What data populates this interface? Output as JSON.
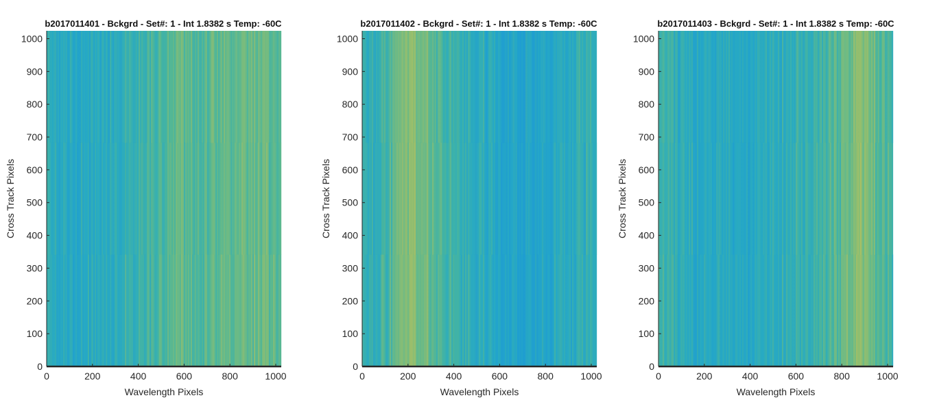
{
  "chart_data": [
    {
      "type": "heatmap",
      "title": "b2017011401 - Bckgrd - Set#: 1 - Int 1.8382 s Temp: -60C",
      "xlabel": "Wavelength Pixels",
      "ylabel": "Cross Track Pixels",
      "xlim": [
        0,
        1024
      ],
      "ylim": [
        0,
        1024
      ],
      "xticks": [
        0,
        200,
        400,
        600,
        800,
        1000
      ],
      "yticks": [
        0,
        100,
        200,
        300,
        400,
        500,
        600,
        700,
        800,
        900,
        1000
      ],
      "colormap": [
        "#1e9bd4",
        "#27aac4",
        "#4cb69a",
        "#8fbe70",
        "#c2c05a"
      ],
      "column_profile": [
        {
          "x": 0,
          "level": 0.3
        },
        {
          "x": 100,
          "level": 0.22
        },
        {
          "x": 200,
          "level": 0.25
        },
        {
          "x": 300,
          "level": 0.32
        },
        {
          "x": 400,
          "level": 0.4
        },
        {
          "x": 500,
          "level": 0.48
        },
        {
          "x": 600,
          "level": 0.56
        },
        {
          "x": 700,
          "level": 0.52
        },
        {
          "x": 800,
          "level": 0.58
        },
        {
          "x": 900,
          "level": 0.6
        },
        {
          "x": 1024,
          "level": 0.55
        }
      ]
    },
    {
      "type": "heatmap",
      "title": "b2017011402 - Bckgrd - Set#: 1 - Int 1.8382 s Temp: -60C",
      "xlabel": "Wavelength Pixels",
      "ylabel": "Cross Track Pixels",
      "xlim": [
        0,
        1024
      ],
      "ylim": [
        0,
        1024
      ],
      "xticks": [
        0,
        200,
        400,
        600,
        800,
        1000
      ],
      "yticks": [
        0,
        100,
        200,
        300,
        400,
        500,
        600,
        700,
        800,
        900,
        1000
      ],
      "colormap": [
        "#1e9bd4",
        "#27aac4",
        "#4cb69a",
        "#8fbe70",
        "#c2c05a"
      ],
      "column_profile": [
        {
          "x": 0,
          "level": 0.3
        },
        {
          "x": 100,
          "level": 0.42
        },
        {
          "x": 200,
          "level": 0.72
        },
        {
          "x": 260,
          "level": 0.7
        },
        {
          "x": 350,
          "level": 0.45
        },
        {
          "x": 450,
          "level": 0.35
        },
        {
          "x": 550,
          "level": 0.25
        },
        {
          "x": 650,
          "level": 0.15
        },
        {
          "x": 750,
          "level": 0.12
        },
        {
          "x": 850,
          "level": 0.2
        },
        {
          "x": 950,
          "level": 0.3
        },
        {
          "x": 1024,
          "level": 0.35
        }
      ]
    },
    {
      "type": "heatmap",
      "title": "b2017011403 - Bckgrd - Set#: 1 - Int 1.8382 s Temp: -60C",
      "xlabel": "Wavelength Pixels",
      "ylabel": "Cross Track Pixels",
      "xlim": [
        0,
        1024
      ],
      "ylim": [
        0,
        1024
      ],
      "xticks": [
        0,
        200,
        400,
        600,
        800,
        1000
      ],
      "yticks": [
        0,
        100,
        200,
        300,
        400,
        500,
        600,
        700,
        800,
        900,
        1000
      ],
      "colormap": [
        "#1e9bd4",
        "#27aac4",
        "#4cb69a",
        "#8fbe70",
        "#c2c05a"
      ],
      "column_profile": [
        {
          "x": 0,
          "level": 0.4
        },
        {
          "x": 100,
          "level": 0.28
        },
        {
          "x": 200,
          "level": 0.22
        },
        {
          "x": 300,
          "level": 0.2
        },
        {
          "x": 400,
          "level": 0.22
        },
        {
          "x": 500,
          "level": 0.28
        },
        {
          "x": 600,
          "level": 0.35
        },
        {
          "x": 700,
          "level": 0.4
        },
        {
          "x": 800,
          "level": 0.55
        },
        {
          "x": 880,
          "level": 0.75
        },
        {
          "x": 950,
          "level": 0.55
        },
        {
          "x": 1024,
          "level": 0.45
        }
      ]
    }
  ]
}
